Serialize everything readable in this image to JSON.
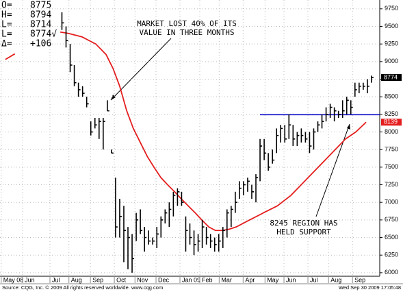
{
  "chart_data": {
    "type": "ohlc",
    "color": "#000000",
    "info": [
      {
        "label": "O=",
        "value": "8775"
      },
      {
        "label": "H=",
        "value": "8794"
      },
      {
        "label": "L=",
        "value": "8714"
      },
      {
        "label": "L=",
        "value": "8774√"
      },
      {
        "label": "Δ=",
        "value": "+106"
      }
    ],
    "x": [
      15,
      16,
      17,
      18,
      19,
      20,
      21,
      22,
      23,
      24,
      25,
      26,
      27,
      28,
      29,
      30,
      31,
      32,
      33,
      34,
      35,
      36,
      37,
      38,
      39,
      40,
      41,
      42,
      43,
      44,
      45,
      46,
      47,
      48,
      49,
      50,
      51,
      52,
      53,
      54,
      55,
      56,
      57,
      58,
      59,
      60,
      61,
      62,
      63,
      64,
      65,
      66,
      67,
      68,
      69,
      70,
      71,
      72,
      73,
      74,
      75,
      76,
      77,
      78,
      79,
      80,
      81,
      82,
      83,
      84,
      85,
      86,
      87,
      88,
      89,
      90
    ],
    "high": [
      9700,
      9500,
      9250,
      8950,
      8700,
      8650,
      8500,
      8150,
      8200,
      8200,
      8200,
      8450,
      7750,
      7350,
      7050,
      6950,
      6650,
      6550,
      6850,
      6900,
      6650,
      6600,
      6500,
      6650,
      6800,
      6900,
      7000,
      7150,
      7200,
      7150,
      6800,
      6700,
      6600,
      6550,
      6750,
      6650,
      6550,
      6500,
      6550,
      6650,
      6900,
      6950,
      7150,
      7300,
      7300,
      7350,
      7250,
      7400,
      7900,
      7900,
      7700,
      7750,
      8050,
      8100,
      8100,
      8250,
      8100,
      8000,
      8050,
      8000,
      8000,
      8050,
      8150,
      8250,
      8350,
      8400,
      8350,
      8300,
      8450,
      8500,
      8450,
      8700,
      8700,
      8700,
      8750,
      8800
    ],
    "low": [
      9450,
      9200,
      8850,
      8650,
      8500,
      8500,
      8350,
      7950,
      8050,
      7900,
      7750,
      8300,
      7700,
      6500,
      6500,
      6150,
      6050,
      6000,
      6450,
      6550,
      6300,
      6400,
      6400,
      6350,
      6500,
      6700,
      6650,
      6800,
      6950,
      6950,
      6300,
      6400,
      6250,
      6300,
      6350,
      6400,
      6350,
      6300,
      6300,
      6350,
      6500,
      6650,
      6850,
      7050,
      7100,
      7150,
      7050,
      7000,
      7300,
      7600,
      7450,
      7550,
      7700,
      7850,
      7850,
      7900,
      7800,
      7800,
      7850,
      7850,
      7700,
      7750,
      8000,
      8050,
      8150,
      8200,
      8150,
      8200,
      8200,
      8250,
      8250,
      8500,
      8550,
      8600,
      8550,
      8700
    ],
    "close": [
      9550,
      9300,
      8950,
      8700,
      8600,
      8550,
      8400,
      8000,
      8100,
      8150,
      8150,
      8300,
      7700,
      6650,
      6800,
      6600,
      6500,
      6200,
      6750,
      6600,
      6500,
      6450,
      6450,
      6550,
      6750,
      6850,
      6900,
      7100,
      7150,
      7000,
      6600,
      6500,
      6400,
      6450,
      6650,
      6500,
      6450,
      6400,
      6450,
      6600,
      6850,
      6900,
      7000,
      7200,
      7250,
      7300,
      7150,
      7350,
      7800,
      7700,
      7500,
      7600,
      7950,
      8050,
      7900,
      8100,
      7900,
      7950,
      7950,
      7900,
      7800,
      8000,
      8100,
      8150,
      8250,
      8350,
      8300,
      8250,
      8300,
      8450,
      8350,
      8600,
      8650,
      8650,
      8650,
      8774
    ],
    "moving_average": {
      "color": "#e41e1e",
      "x": [
        1.3,
        3.6,
        9,
        14.6,
        16.6,
        19.9,
        23.2,
        25.7,
        27.4,
        29,
        30.7,
        32.3,
        34,
        35.7,
        37.3,
        39,
        40.6,
        42.3,
        43.9,
        45.6,
        47.3,
        48.9,
        50.6,
        52.2,
        53.9,
        55.6,
        57.2,
        60.5,
        63.8,
        67.2,
        70.5,
        73.8,
        77.1,
        80.4,
        83.7,
        86.2,
        88.7
      ],
      "values": [
        9030,
        9110,
        null,
        9420,
        9400,
        9350,
        9250,
        9100,
        8900,
        8650,
        8300,
        8050,
        7850,
        7650,
        7500,
        7350,
        7250,
        7150,
        7050,
        6950,
        6850,
        6750,
        6650,
        6600,
        6600,
        6620,
        6650,
        6750,
        6850,
        6950,
        7100,
        7300,
        7500,
        7700,
        7900,
        8000,
        8139
      ]
    },
    "hline": {
      "value": 8245,
      "x_start": 63,
      "color": "#0000c8"
    },
    "xlim": [
      0,
      92
    ],
    "xticks": [
      {
        "value": 0.3,
        "label": "May 08"
      },
      {
        "value": 5.5,
        "label": "Jun"
      },
      {
        "value": 12.1,
        "label": "Jul"
      },
      {
        "value": 16.7,
        "label": "Aug"
      },
      {
        "value": 21.9,
        "label": "Sep"
      },
      {
        "value": 27.7,
        "label": "Oct"
      },
      {
        "value": 32.7,
        "label": "Nov"
      },
      {
        "value": 37.8,
        "label": "Dec"
      },
      {
        "value": 43.6,
        "label": "Jan 09"
      },
      {
        "value": 48.4,
        "label": "Feb"
      },
      {
        "value": 53.1,
        "label": "Mar"
      },
      {
        "value": 58.9,
        "label": "Apr"
      },
      {
        "value": 64.2,
        "label": "May"
      },
      {
        "value": 68.8,
        "label": "Jun"
      },
      {
        "value": 74.6,
        "label": "Jul"
      },
      {
        "value": 79.6,
        "label": "Aug"
      },
      {
        "value": 85.4,
        "label": "Sep"
      }
    ],
    "ylim": [
      5950,
      9875
    ],
    "yticks": [
      6000,
      6250,
      6500,
      6750,
      7000,
      7250,
      7500,
      7750,
      8000,
      8250,
      8500,
      8750,
      9000,
      9250,
      9500,
      9750
    ],
    "grid": true,
    "annotations": [
      {
        "lines": [
          "MARKET LOST 40% OF ITS",
          "VALUE IN THREE MONTHS"
        ]
      },
      {
        "lines": [
          "8245 REGION HAS",
          "HELD SUPPORT"
        ]
      }
    ],
    "source": "Source: CQG, Inc. © 2009 All rights reserved worldwide. www.cqg.com",
    "timestamp": "Wed Sep 30 2009 17:05:48"
  }
}
